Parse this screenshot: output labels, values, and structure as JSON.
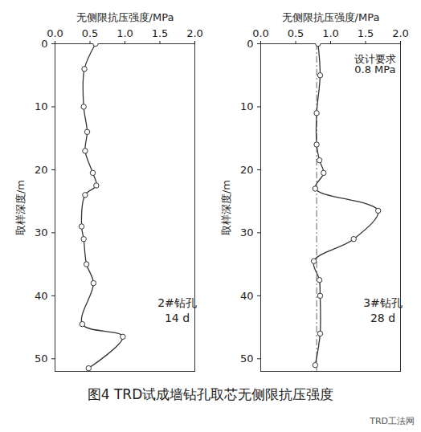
{
  "chart_data": [
    {
      "type": "line",
      "marker": "circle",
      "color": "#333333",
      "x_label": "无侧限抗压强度/MPa",
      "y_label": "取样深度/m",
      "xlim": [
        0,
        2.0
      ],
      "xticks": [
        {
          "value": 0,
          "label": "0.0"
        },
        0.5,
        {
          "value": 1,
          "label": "1.0"
        },
        1.5,
        {
          "value": 2,
          "label": "2.0"
        }
      ],
      "ylim": [
        0,
        52
      ],
      "yticks": [
        0,
        10,
        20,
        30,
        40,
        50
      ],
      "y": [
        0,
        4,
        10,
        14,
        17,
        20.5,
        22.5,
        24,
        29,
        31,
        35,
        38,
        44.5,
        46.5,
        51.5
      ],
      "values": [
        0.58,
        0.42,
        0.41,
        0.46,
        0.43,
        0.54,
        0.59,
        0.43,
        0.38,
        0.41,
        0.45,
        0.55,
        0.39,
        0.97,
        0.48
      ],
      "annotations": [
        "2#钻孔",
        "14 d"
      ]
    },
    {
      "type": "line",
      "marker": "circle",
      "color": "#333333",
      "x_label": "无侧限抗压强度/MPa",
      "y_label": "取样深度/m",
      "xlim": [
        0,
        2.0
      ],
      "xticks": [
        {
          "value": 0,
          "label": "0.0"
        },
        0.5,
        {
          "value": 1,
          "label": "1.0"
        },
        1.5,
        {
          "value": 2,
          "label": "2.0"
        }
      ],
      "ylim": [
        0,
        52
      ],
      "yticks": [
        0,
        10,
        20,
        30,
        40,
        50
      ],
      "y": [
        0,
        5,
        11,
        16,
        18.5,
        20.5,
        23,
        26.5,
        31,
        34.5,
        37.5,
        40,
        46,
        51
      ],
      "values": [
        0.82,
        0.85,
        0.8,
        0.8,
        0.84,
        0.9,
        0.78,
        1.68,
        1.33,
        0.76,
        0.84,
        0.85,
        0.85,
        0.78
      ],
      "reference_line": {
        "value": 0.8,
        "label": [
          "设计要求",
          "0.8 MPa"
        ],
        "line_style": "dashdot"
      },
      "annotations": [
        "3#钻孔",
        "28 d"
      ]
    }
  ],
  "caption": "图4   TRD试成墙钻孔取芯无侧限抗压强度",
  "watermark": "TRD工法网"
}
